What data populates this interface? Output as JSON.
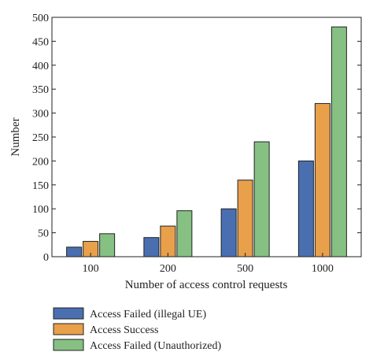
{
  "chart_data": {
    "type": "bar",
    "categories": [
      "100",
      "200",
      "500",
      "1000"
    ],
    "series": [
      {
        "name": "Access Failed (illegal UE)",
        "values": [
          20,
          40,
          100,
          200
        ],
        "color": "#4a6fb0"
      },
      {
        "name": "Access Success",
        "values": [
          32,
          64,
          160,
          320
        ],
        "color": "#e8a04a"
      },
      {
        "name": "Access Failed (Unauthorized)",
        "values": [
          48,
          96,
          240,
          480
        ],
        "color": "#86c083"
      }
    ],
    "xlabel": "Number of access control requests",
    "ylabel": "Number",
    "ylim": [
      0,
      500
    ],
    "yticks": [
      0,
      50,
      100,
      150,
      200,
      250,
      300,
      350,
      400,
      450,
      500
    ],
    "grid": false,
    "legend_position": "bottom-left, below plot"
  }
}
